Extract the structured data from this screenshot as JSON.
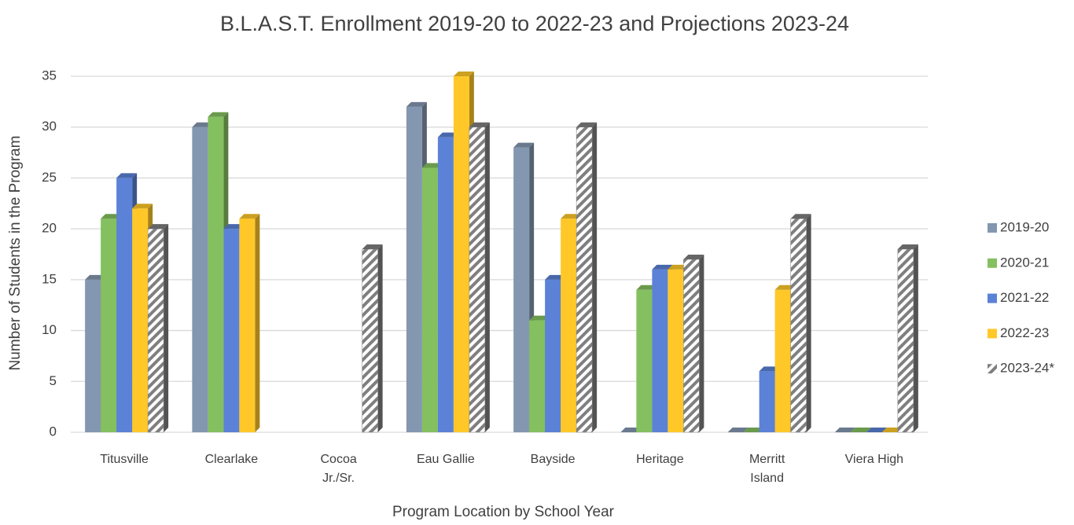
{
  "chart_data": {
    "type": "bar3d",
    "title": "B.L.A.S.T. Enrollment 2019-20 to 2022-23 and Projections 2023-24",
    "x_label": "Program Location by School Year",
    "y_label": "Number of Students in the Program",
    "categories": [
      "Titusville",
      "Clearlake",
      "Cocoa Jr./Sr.",
      "Eau Gallie",
      "Bayside",
      "Heritage",
      "Merritt Island",
      "Viera High"
    ],
    "series": [
      {
        "name": "2019-20",
        "color": "#8497b0",
        "values": [
          15,
          30,
          null,
          32,
          28,
          0,
          0,
          0
        ]
      },
      {
        "name": "2020-21",
        "color": "#84c05f",
        "values": [
          21,
          31,
          null,
          26,
          11,
          14,
          0,
          0
        ]
      },
      {
        "name": "2021-22",
        "color": "#5b82d6",
        "values": [
          25,
          20,
          null,
          29,
          15,
          16,
          6,
          0
        ]
      },
      {
        "name": "2022-23",
        "color": "#ffc828",
        "values": [
          22,
          21,
          null,
          35,
          21,
          16,
          14,
          0
        ]
      },
      {
        "name": "2023-24*",
        "color": "#7f7f7f",
        "pattern": "hatch",
        "values": [
          20,
          null,
          18,
          30,
          30,
          17,
          21,
          18
        ]
      }
    ],
    "ylim": [
      0,
      35
    ],
    "yticks": [
      0,
      5,
      10,
      15,
      20,
      25,
      30,
      35
    ],
    "grid": true,
    "legend": "right"
  }
}
